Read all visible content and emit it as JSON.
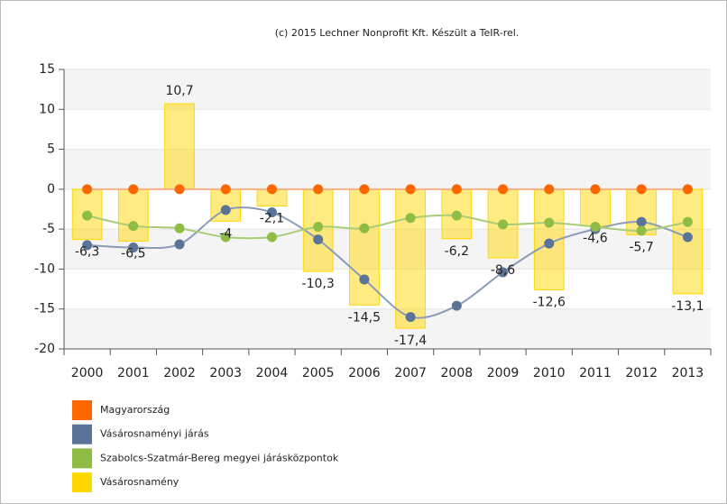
{
  "chart_data": {
    "type": "combo",
    "title": "(c) 2015 Lechner Nonprofit Kft. Készült a TeIR-rel.",
    "categories": [
      "2000",
      "2001",
      "2002",
      "2003",
      "2004",
      "2005",
      "2006",
      "2007",
      "2008",
      "2009",
      "2010",
      "2011",
      "2012",
      "2013"
    ],
    "ylim": [
      -20,
      15
    ],
    "yticks": [
      15,
      10,
      5,
      0,
      -5,
      -10,
      -15,
      -20
    ],
    "grid": true,
    "legend": "bottom-left",
    "series": [
      {
        "name": "Magyarország",
        "type": "line",
        "color": "#ff6600",
        "line_color": "#f4b183",
        "values": [
          0,
          0,
          0,
          0,
          0,
          0,
          0,
          0,
          0,
          0,
          0,
          0,
          0,
          0
        ]
      },
      {
        "name": "Vásárosnaményi járás",
        "type": "line",
        "color": "#5a7396",
        "line_color": "#8b9cb8",
        "values": [
          -7.0,
          -7.3,
          -6.9,
          -2.6,
          -2.9,
          -6.3,
          -11.3,
          -16.0,
          -14.6,
          -10.4,
          -6.8,
          -5.0,
          -4.1,
          -6.0
        ]
      },
      {
        "name": "Szabolcs-Szatmár-Bereg megyei járásközpontok",
        "type": "line",
        "color": "#8fbc45",
        "line_color": "#a9cc78",
        "values": [
          -3.3,
          -4.6,
          -4.9,
          -6.0,
          -6.0,
          -4.7,
          -4.9,
          -3.6,
          -3.3,
          -4.4,
          -4.2,
          -4.7,
          -5.2,
          -4.1
        ]
      },
      {
        "name": "Vásárosnamény",
        "type": "bar",
        "color": "#ffd700",
        "line_color": "#ffd700",
        "values": [
          -6.3,
          -6.5,
          10.7,
          -4,
          -2.1,
          -10.3,
          -14.5,
          -17.4,
          -6.2,
          -8.6,
          -12.6,
          -4.6,
          -5.7,
          -13.1
        ],
        "value_labels": [
          "-6,3",
          "-6,5",
          "10,7",
          "-4",
          "-2,1",
          "-10,3",
          "-14,5",
          "-17,4",
          "-6,2",
          "-8,6",
          "-12,6",
          "-4,6",
          "-5,7",
          "-13,1"
        ]
      }
    ]
  }
}
